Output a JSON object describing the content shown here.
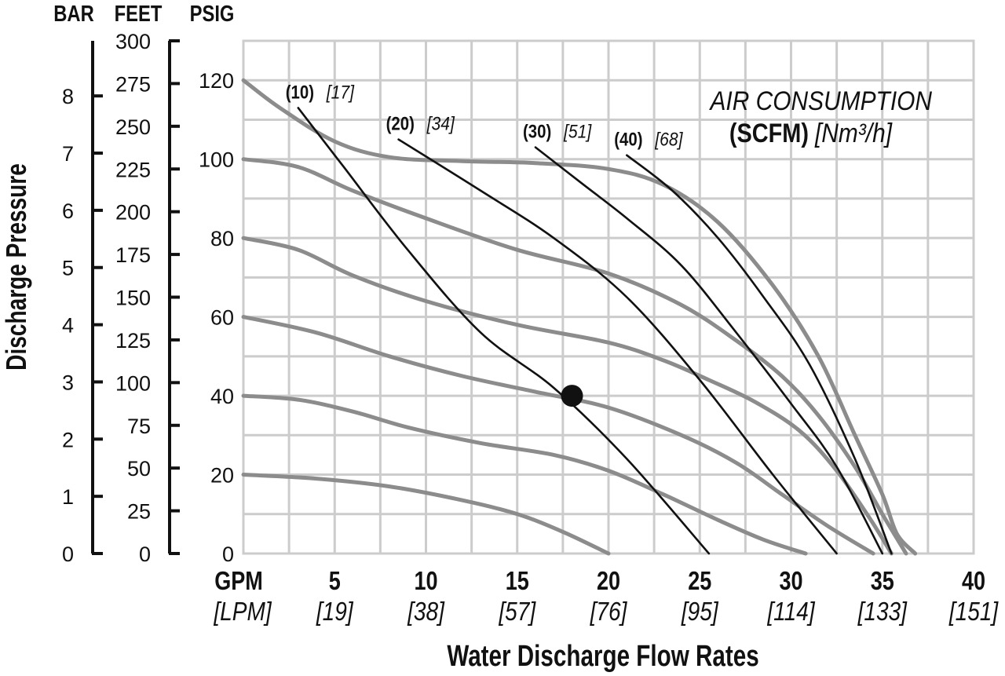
{
  "chart_data": {
    "type": "line",
    "title": "AIR CONSUMPTION",
    "title_units_bold": "(SCFM)",
    "title_units_italic": "[Nm³/h]",
    "xlabel": "Water Discharge Flow Rates",
    "ylabel": "Discharge Pressure",
    "x_unit_primary": "GPM",
    "x_unit_secondary": "[LPM]",
    "xlim": [
      0,
      40
    ],
    "ylim": [
      0,
      130
    ],
    "x_ticks": [
      {
        "gpm": "5",
        "lpm": "[19]"
      },
      {
        "gpm": "10",
        "lpm": "[38]"
      },
      {
        "gpm": "15",
        "lpm": "[57]"
      },
      {
        "gpm": "20",
        "lpm": "[76]"
      },
      {
        "gpm": "25",
        "lpm": "[95]"
      },
      {
        "gpm": "30",
        "lpm": "[114]"
      },
      {
        "gpm": "35",
        "lpm": "[133]"
      },
      {
        "gpm": "40",
        "lpm": "[151]"
      }
    ],
    "y_axes": {
      "psig": {
        "label": "PSIG",
        "ticks": [
          "0",
          "20",
          "40",
          "60",
          "80",
          "100",
          "120"
        ],
        "values": [
          0,
          20,
          40,
          60,
          80,
          100,
          120
        ]
      },
      "feet": {
        "label": "FEET",
        "ticks": [
          "0",
          "25",
          "50",
          "75",
          "100",
          "125",
          "150",
          "175",
          "200",
          "225",
          "250",
          "275",
          "300"
        ],
        "values": [
          0,
          25,
          50,
          75,
          100,
          125,
          150,
          175,
          200,
          225,
          250,
          275,
          300
        ]
      },
      "bar": {
        "label": "BAR",
        "ticks": [
          "0",
          "1",
          "2",
          "3",
          "4",
          "5",
          "6",
          "7",
          "8"
        ],
        "values": [
          0,
          1,
          2,
          3,
          4,
          5,
          6,
          7,
          8
        ]
      }
    },
    "grid": true,
    "pressure_curves": [
      {
        "psig": 120,
        "points": [
          [
            0,
            120
          ],
          [
            2,
            113
          ],
          [
            5,
            104.5
          ],
          [
            8,
            100.5
          ],
          [
            12,
            99.5
          ],
          [
            16,
            99
          ],
          [
            20,
            97.5
          ],
          [
            23,
            93.5
          ],
          [
            26,
            84
          ],
          [
            29,
            68
          ],
          [
            31.5,
            50
          ],
          [
            33.5,
            30
          ],
          [
            35,
            15
          ],
          [
            35.8,
            5
          ],
          [
            36.8,
            0
          ]
        ]
      },
      {
        "psig": 100,
        "points": [
          [
            0,
            100
          ],
          [
            3,
            98
          ],
          [
            6,
            92
          ],
          [
            10,
            85
          ],
          [
            15,
            77
          ],
          [
            20,
            71
          ],
          [
            24,
            63
          ],
          [
            27,
            54
          ],
          [
            29.5,
            45
          ],
          [
            31.5,
            35
          ],
          [
            33.5,
            22
          ],
          [
            35,
            10
          ],
          [
            36.3,
            0
          ]
        ]
      },
      {
        "psig": 80,
        "points": [
          [
            0,
            80
          ],
          [
            3,
            77
          ],
          [
            6,
            70.5
          ],
          [
            10,
            64
          ],
          [
            15,
            58
          ],
          [
            20,
            53.5
          ],
          [
            23,
            49
          ],
          [
            25.5,
            44
          ],
          [
            28,
            38.5
          ],
          [
            30.5,
            31
          ],
          [
            32.5,
            21
          ],
          [
            34.3,
            9
          ],
          [
            35.5,
            0
          ]
        ]
      },
      {
        "psig": 60,
        "points": [
          [
            0,
            60
          ],
          [
            4,
            56
          ],
          [
            8,
            50
          ],
          [
            12,
            45
          ],
          [
            16,
            41
          ],
          [
            20,
            37
          ],
          [
            24,
            30
          ],
          [
            27,
            23
          ],
          [
            29.5,
            15
          ],
          [
            32,
            7
          ],
          [
            34.5,
            0
          ]
        ]
      },
      {
        "psig": 40,
        "points": [
          [
            0,
            40
          ],
          [
            3,
            39
          ],
          [
            6,
            36
          ],
          [
            9,
            32
          ],
          [
            13,
            28
          ],
          [
            17,
            25
          ],
          [
            20,
            21
          ],
          [
            23,
            15
          ],
          [
            26,
            8.5
          ],
          [
            28.5,
            3.5
          ],
          [
            30.8,
            0
          ]
        ]
      },
      {
        "psig": 20,
        "points": [
          [
            0,
            20
          ],
          [
            4,
            19
          ],
          [
            8,
            17
          ],
          [
            12,
            13.5
          ],
          [
            15,
            10
          ],
          [
            17.5,
            5.5
          ],
          [
            20,
            0
          ]
        ]
      }
    ],
    "air_curves": [
      {
        "scfm": "(10)",
        "nm3h": "[17]",
        "points": [
          [
            3,
            113
          ],
          [
            5.5,
            98
          ],
          [
            9,
            77
          ],
          [
            13,
            56
          ],
          [
            17,
            42
          ],
          [
            21,
            24
          ],
          [
            25.5,
            0
          ]
        ]
      },
      {
        "scfm": "(20)",
        "nm3h": "[34]",
        "points": [
          [
            8.5,
            105
          ],
          [
            13,
            92
          ],
          [
            17,
            80
          ],
          [
            21,
            65
          ],
          [
            25,
            44
          ],
          [
            29,
            20
          ],
          [
            32.5,
            0
          ]
        ]
      },
      {
        "scfm": "(30)",
        "nm3h": "[51]",
        "points": [
          [
            16,
            103
          ],
          [
            18.5,
            94
          ],
          [
            21,
            85
          ],
          [
            24,
            73
          ],
          [
            27,
            56
          ],
          [
            30,
            38
          ],
          [
            32.5,
            22
          ],
          [
            35,
            0
          ]
        ]
      },
      {
        "scfm": "(40)",
        "nm3h": "[68]",
        "points": [
          [
            21,
            101
          ],
          [
            23.5,
            92
          ],
          [
            26,
            80
          ],
          [
            28.5,
            65
          ],
          [
            31,
            48
          ],
          [
            33.5,
            24
          ],
          [
            35.5,
            0
          ]
        ]
      }
    ],
    "operating_point": {
      "x": 18,
      "y": 40
    },
    "colors": {
      "pressure_curve": "#8c8c8c",
      "air_curve": "#111111",
      "grid": "#cccccc",
      "axis": "#111111"
    }
  }
}
